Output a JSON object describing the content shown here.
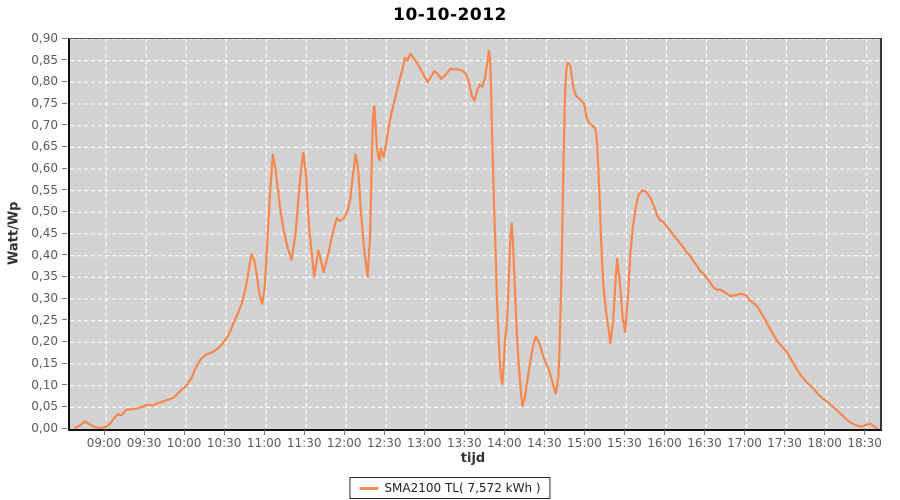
{
  "chart_data": {
    "type": "line",
    "title": "10-10-2012",
    "xlabel": "tijd",
    "ylabel": "Watt/Wp",
    "ylim": [
      0,
      0.9
    ],
    "grid": true,
    "legend_position": "bottom-center",
    "x_domain_minutes": [
      513,
      1120
    ],
    "x_ticks": [
      "09:00",
      "09:30",
      "10:00",
      "10:30",
      "11:00",
      "11:30",
      "12:00",
      "12:30",
      "13:00",
      "13:30",
      "14:00",
      "14:30",
      "15:00",
      "15:30",
      "16:00",
      "16:30",
      "17:00",
      "17:30",
      "18:00",
      "18:30"
    ],
    "y_ticks": [
      "0,00",
      "0,05",
      "0,10",
      "0,15",
      "0,20",
      "0,25",
      "0,30",
      "0,35",
      "0,40",
      "0,45",
      "0,50",
      "0,55",
      "0,60",
      "0,65",
      "0,70",
      "0,75",
      "0,80",
      "0,85",
      "0,90"
    ],
    "colors": {
      "plot_background": "#d2d2d2",
      "gridline": "#ffffff",
      "tick_text": "#5a5a5a",
      "axis_title_text": "#333333",
      "title_text": "#000000"
    },
    "series": [
      {
        "name": "SMA2100 TL( 7,572 kWh )",
        "color": "#f6874d",
        "points": [
          [
            517,
            0.003
          ],
          [
            521,
            0.009
          ],
          [
            524,
            0.018
          ],
          [
            527,
            0.012
          ],
          [
            531,
            0.005
          ],
          [
            535,
            0.002
          ],
          [
            540,
            0.005
          ],
          [
            543,
            0.012
          ],
          [
            546,
            0.025
          ],
          [
            549,
            0.034
          ],
          [
            552,
            0.032
          ],
          [
            555,
            0.044
          ],
          [
            559,
            0.046
          ],
          [
            563,
            0.047
          ],
          [
            567,
            0.051
          ],
          [
            571,
            0.056
          ],
          [
            575,
            0.054
          ],
          [
            579,
            0.06
          ],
          [
            583,
            0.064
          ],
          [
            587,
            0.068
          ],
          [
            591,
            0.073
          ],
          [
            595,
            0.086
          ],
          [
            600,
            0.1
          ],
          [
            604,
            0.117
          ],
          [
            607,
            0.14
          ],
          [
            611,
            0.161
          ],
          [
            615,
            0.172
          ],
          [
            619,
            0.176
          ],
          [
            623,
            0.184
          ],
          [
            627,
            0.196
          ],
          [
            630,
            0.208
          ],
          [
            633,
            0.224
          ],
          [
            636,
            0.248
          ],
          [
            639,
            0.268
          ],
          [
            642,
            0.292
          ],
          [
            645,
            0.33
          ],
          [
            647,
            0.368
          ],
          [
            649,
            0.403
          ],
          [
            651,
            0.39
          ],
          [
            653,
            0.355
          ],
          [
            655,
            0.31
          ],
          [
            657,
            0.289
          ],
          [
            659,
            0.33
          ],
          [
            661,
            0.44
          ],
          [
            663,
            0.55
          ],
          [
            665,
            0.633
          ],
          [
            667,
            0.6
          ],
          [
            670,
            0.52
          ],
          [
            673,
            0.46
          ],
          [
            676,
            0.42
          ],
          [
            679,
            0.39
          ],
          [
            682,
            0.45
          ],
          [
            685,
            0.56
          ],
          [
            687,
            0.62
          ],
          [
            688,
            0.637
          ],
          [
            690,
            0.58
          ],
          [
            692,
            0.47
          ],
          [
            694,
            0.41
          ],
          [
            696,
            0.352
          ],
          [
            698,
            0.39
          ],
          [
            699,
            0.413
          ],
          [
            701,
            0.39
          ],
          [
            703,
            0.362
          ],
          [
            705,
            0.385
          ],
          [
            707,
            0.41
          ],
          [
            709,
            0.44
          ],
          [
            711,
            0.465
          ],
          [
            713,
            0.487
          ],
          [
            715,
            0.48
          ],
          [
            717,
            0.483
          ],
          [
            719,
            0.49
          ],
          [
            721,
            0.505
          ],
          [
            723,
            0.53
          ],
          [
            725,
            0.585
          ],
          [
            727,
            0.634
          ],
          [
            729,
            0.6
          ],
          [
            731,
            0.5
          ],
          [
            733,
            0.43
          ],
          [
            734,
            0.4
          ],
          [
            736,
            0.352
          ],
          [
            738,
            0.45
          ],
          [
            739,
            0.6
          ],
          [
            740,
            0.72
          ],
          [
            741,
            0.745
          ],
          [
            742,
            0.7
          ],
          [
            743,
            0.65
          ],
          [
            744,
            0.628
          ],
          [
            745,
            0.62
          ],
          [
            746,
            0.648
          ],
          [
            747,
            0.635
          ],
          [
            748,
            0.628
          ],
          [
            750,
            0.66
          ],
          [
            752,
            0.7
          ],
          [
            754,
            0.73
          ],
          [
            756,
            0.755
          ],
          [
            758,
            0.78
          ],
          [
            760,
            0.805
          ],
          [
            762,
            0.828
          ],
          [
            764,
            0.857
          ],
          [
            766,
            0.85
          ],
          [
            768,
            0.866
          ],
          [
            770,
            0.858
          ],
          [
            773,
            0.845
          ],
          [
            776,
            0.828
          ],
          [
            778,
            0.818
          ],
          [
            781,
            0.8
          ],
          [
            783,
            0.81
          ],
          [
            786,
            0.826
          ],
          [
            789,
            0.818
          ],
          [
            791,
            0.808
          ],
          [
            794,
            0.816
          ],
          [
            798,
            0.831
          ],
          [
            803,
            0.83
          ],
          [
            807,
            0.827
          ],
          [
            810,
            0.818
          ],
          [
            812,
            0.8
          ],
          [
            814,
            0.77
          ],
          [
            816,
            0.758
          ],
          [
            818,
            0.78
          ],
          [
            820,
            0.795
          ],
          [
            822,
            0.79
          ],
          [
            824,
            0.81
          ],
          [
            826,
            0.852
          ],
          [
            827,
            0.872
          ],
          [
            828,
            0.85
          ],
          [
            829,
            0.72
          ],
          [
            830,
            0.6
          ],
          [
            831,
            0.5
          ],
          [
            832,
            0.4
          ],
          [
            833,
            0.3
          ],
          [
            834,
            0.22
          ],
          [
            835,
            0.16
          ],
          [
            836,
            0.12
          ],
          [
            837,
            0.104
          ],
          [
            838,
            0.15
          ],
          [
            839,
            0.205
          ],
          [
            840,
            0.23
          ],
          [
            841,
            0.28
          ],
          [
            842,
            0.36
          ],
          [
            843,
            0.44
          ],
          [
            844,
            0.475
          ],
          [
            845,
            0.43
          ],
          [
            846,
            0.35
          ],
          [
            847,
            0.28
          ],
          [
            848,
            0.215
          ],
          [
            849,
            0.16
          ],
          [
            850,
            0.12
          ],
          [
            851,
            0.082
          ],
          [
            852,
            0.053
          ],
          [
            854,
            0.075
          ],
          [
            856,
            0.118
          ],
          [
            858,
            0.158
          ],
          [
            860,
            0.19
          ],
          [
            862,
            0.213
          ],
          [
            864,
            0.203
          ],
          [
            866,
            0.185
          ],
          [
            868,
            0.164
          ],
          [
            869,
            0.156
          ],
          [
            871,
            0.144
          ],
          [
            873,
            0.125
          ],
          [
            875,
            0.102
          ],
          [
            877,
            0.082
          ],
          [
            879,
            0.12
          ],
          [
            880,
            0.2
          ],
          [
            881,
            0.32
          ],
          [
            882,
            0.48
          ],
          [
            883,
            0.64
          ],
          [
            884,
            0.78
          ],
          [
            885,
            0.832
          ],
          [
            886,
            0.845
          ],
          [
            887,
            0.843
          ],
          [
            888,
            0.838
          ],
          [
            889,
            0.815
          ],
          [
            890,
            0.792
          ],
          [
            892,
            0.77
          ],
          [
            894,
            0.764
          ],
          [
            896,
            0.758
          ],
          [
            898,
            0.751
          ],
          [
            899,
            0.74
          ],
          [
            900,
            0.72
          ],
          [
            902,
            0.706
          ],
          [
            904,
            0.701
          ],
          [
            906,
            0.696
          ],
          [
            907,
            0.69
          ],
          [
            908,
            0.66
          ],
          [
            909,
            0.6
          ],
          [
            910,
            0.52
          ],
          [
            911,
            0.44
          ],
          [
            912,
            0.37
          ],
          [
            913,
            0.32
          ],
          [
            915,
            0.265
          ],
          [
            917,
            0.222
          ],
          [
            918,
            0.198
          ],
          [
            920,
            0.25
          ],
          [
            922,
            0.35
          ],
          [
            923,
            0.393
          ],
          [
            925,
            0.34
          ],
          [
            927,
            0.26
          ],
          [
            929,
            0.224
          ],
          [
            931,
            0.3
          ],
          [
            933,
            0.41
          ],
          [
            935,
            0.47
          ],
          [
            937,
            0.512
          ],
          [
            939,
            0.54
          ],
          [
            942,
            0.551
          ],
          [
            945,
            0.547
          ],
          [
            948,
            0.533
          ],
          [
            951,
            0.511
          ],
          [
            953,
            0.493
          ],
          [
            955,
            0.482
          ],
          [
            958,
            0.477
          ],
          [
            960,
            0.468
          ],
          [
            963,
            0.457
          ],
          [
            965,
            0.448
          ],
          [
            968,
            0.437
          ],
          [
            970,
            0.429
          ],
          [
            973,
            0.418
          ],
          [
            975,
            0.408
          ],
          [
            978,
            0.398
          ],
          [
            980,
            0.388
          ],
          [
            983,
            0.376
          ],
          [
            985,
            0.366
          ],
          [
            988,
            0.357
          ],
          [
            990,
            0.349
          ],
          [
            993,
            0.337
          ],
          [
            995,
            0.327
          ],
          [
            998,
            0.321
          ],
          [
            1000,
            0.322
          ],
          [
            1003,
            0.317
          ],
          [
            1005,
            0.313
          ],
          [
            1008,
            0.307
          ],
          [
            1012,
            0.309
          ],
          [
            1016,
            0.312
          ],
          [
            1020,
            0.308
          ],
          [
            1022,
            0.298
          ],
          [
            1025,
            0.291
          ],
          [
            1028,
            0.283
          ],
          [
            1031,
            0.268
          ],
          [
            1034,
            0.252
          ],
          [
            1037,
            0.235
          ],
          [
            1040,
            0.218
          ],
          [
            1043,
            0.203
          ],
          [
            1046,
            0.192
          ],
          [
            1050,
            0.179
          ],
          [
            1053,
            0.162
          ],
          [
            1056,
            0.147
          ],
          [
            1059,
            0.131
          ],
          [
            1062,
            0.119
          ],
          [
            1065,
            0.108
          ],
          [
            1068,
            0.1
          ],
          [
            1071,
            0.09
          ],
          [
            1074,
            0.079
          ],
          [
            1077,
            0.071
          ],
          [
            1080,
            0.064
          ],
          [
            1083,
            0.056
          ],
          [
            1086,
            0.048
          ],
          [
            1089,
            0.04
          ],
          [
            1092,
            0.031
          ],
          [
            1095,
            0.022
          ],
          [
            1098,
            0.015
          ],
          [
            1101,
            0.01
          ],
          [
            1104,
            0.007
          ],
          [
            1107,
            0.006
          ],
          [
            1110,
            0.01
          ],
          [
            1113,
            0.012
          ],
          [
            1115,
            0.007
          ],
          [
            1117,
            0.003
          ],
          [
            1118,
            0.001
          ]
        ]
      }
    ]
  },
  "legend": {
    "label": "SMA2100 TL( 7,572 kWh )",
    "swatch_color": "#f6874d"
  }
}
